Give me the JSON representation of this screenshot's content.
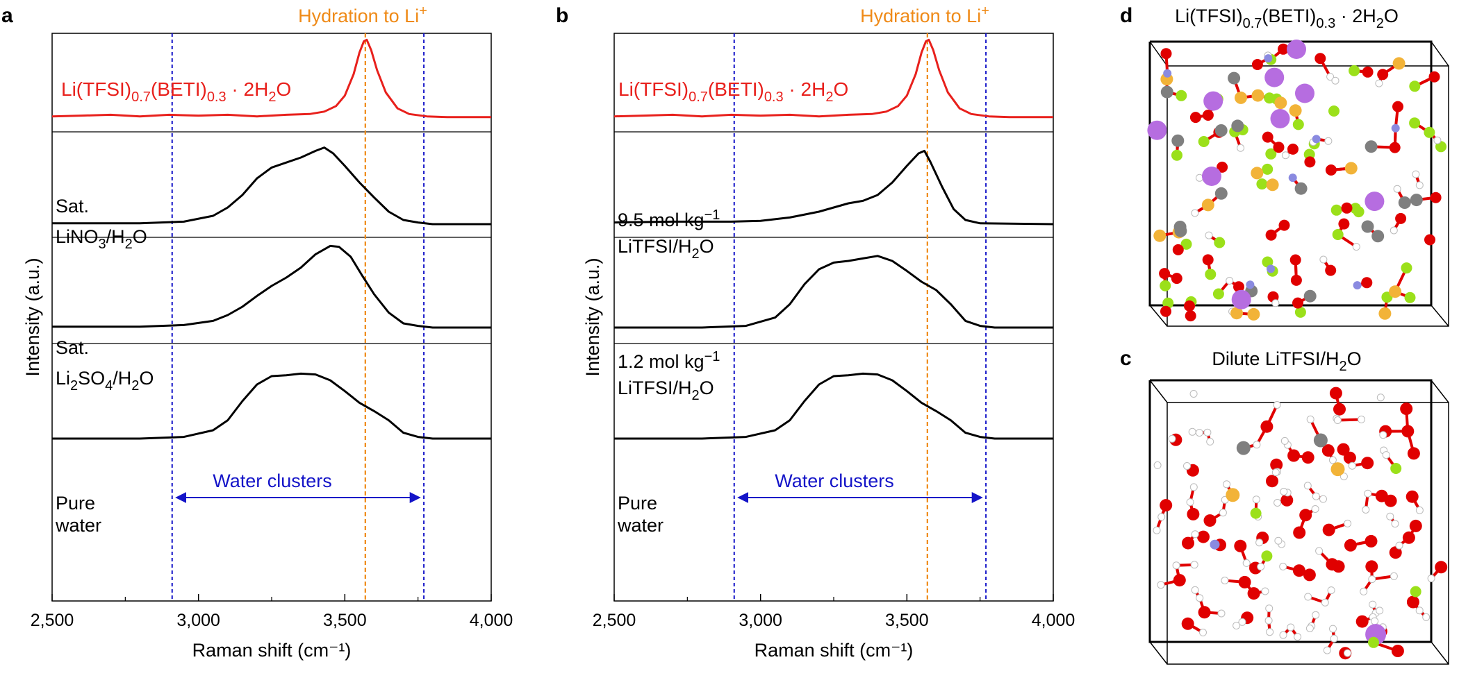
{
  "figure": {
    "panels": {
      "a": "a",
      "b": "b",
      "c": "c",
      "d": "d"
    },
    "annotation_hydration": "Hydration to Li",
    "annotation_hydration_sup": "+",
    "annotation_water": "Water clusters",
    "salt_label": {
      "p1": "Li(TFSI)",
      "s1": "0.7",
      "p2": "(BETI)",
      "s2": "0.3",
      "p3": " · 2H",
      "s3": "2",
      "p4": "O"
    },
    "panel_a_labels": {
      "lino3_l1": "Sat.",
      "lino3_l2a": "LiNO",
      "lino3_l2s": "3",
      "lino3_l2b": "/H",
      "lino3_l2s2": "2",
      "lino3_l2c": "O",
      "li2so4_l1": "Sat.",
      "li2so4_l2a": "Li",
      "li2so4_l2s": "2",
      "li2so4_l2b": "SO",
      "li2so4_l2s2": "4",
      "li2so4_l2c": "/H",
      "li2so4_l2s3": "2",
      "li2so4_l2d": "O",
      "water_l1": "Pure",
      "water_l2": "water"
    },
    "panel_b_labels": {
      "c95_l1a": "9.5 mol kg",
      "c95_sup": "−1",
      "c95_l2a": "LiTFSI/H",
      "c95_l2s": "2",
      "c95_l2b": "O",
      "c12_l1a": "1.2 mol kg",
      "c12_sup": "−1",
      "c12_l2a": "LiTFSI/H",
      "c12_l2s": "2",
      "c12_l2b": "O",
      "water_l1": "Pure",
      "water_l2": "water"
    },
    "panel_c_title_a": "Dilute LiTFSI/H",
    "panel_c_title_s": "2",
    "panel_c_title_b": "O",
    "colors": {
      "salt_trace": "#e8201c",
      "other_traces": "#000000",
      "hydration_line": "#ef8a17",
      "water_cluster_lines": "#1414c8",
      "atom_O": "#e00000",
      "atom_H": "#ffffff",
      "atom_F": "#9be01a",
      "atom_S": "#f2b338",
      "atom_C": "#7f7f7f",
      "atom_N": "#8a8ae0",
      "atom_Li": "#b66de0"
    }
  },
  "chart_data": [
    {
      "panel": "a",
      "type": "line",
      "xlabel": "Raman shift (cm⁻¹)",
      "ylabel": "Intensity (a.u.)",
      "xlim": [
        2500,
        4000
      ],
      "xticks": [
        "2,500",
        "3,000",
        "3,500",
        "4,000"
      ],
      "xtick_values": [
        2500,
        3000,
        3500,
        4000
      ],
      "hydration_x": 3570,
      "water_cluster_range": [
        2910,
        3770
      ],
      "series": [
        {
          "name": "Li(TFSI)0.7(BETI)0.3 · 2H2O",
          "color": "#e8201c",
          "x": [
            2500,
            2600,
            2700,
            2800,
            2900,
            3000,
            3100,
            3200,
            3300,
            3380,
            3430,
            3470,
            3500,
            3530,
            3550,
            3565,
            3575,
            3590,
            3610,
            3640,
            3680,
            3720,
            3780,
            3850,
            4000
          ],
          "y": [
            0.02,
            0.03,
            0.04,
            0.02,
            0.04,
            0.03,
            0.04,
            0.02,
            0.04,
            0.05,
            0.08,
            0.15,
            0.28,
            0.55,
            0.82,
            0.96,
            0.98,
            0.85,
            0.6,
            0.32,
            0.12,
            0.05,
            0.02,
            0.01,
            0.01
          ]
        },
        {
          "name": "Sat. LiNO3/H2O",
          "color": "#000000",
          "x": [
            2500,
            2800,
            2950,
            3050,
            3100,
            3150,
            3200,
            3250,
            3300,
            3350,
            3400,
            3430,
            3460,
            3500,
            3550,
            3600,
            3650,
            3700,
            3750,
            3800,
            4000
          ],
          "y": [
            0.01,
            0.01,
            0.03,
            0.1,
            0.2,
            0.35,
            0.55,
            0.68,
            0.74,
            0.8,
            0.88,
            0.92,
            0.85,
            0.7,
            0.5,
            0.32,
            0.15,
            0.05,
            0.02,
            0.0,
            0.0
          ]
        },
        {
          "name": "Sat. Li2SO4/H2O",
          "color": "#000000",
          "x": [
            2500,
            2800,
            2950,
            3050,
            3100,
            3150,
            3200,
            3250,
            3300,
            3350,
            3400,
            3450,
            3480,
            3520,
            3560,
            3600,
            3650,
            3700,
            3750,
            3800,
            4000
          ],
          "y": [
            0.01,
            0.01,
            0.03,
            0.08,
            0.15,
            0.25,
            0.38,
            0.5,
            0.6,
            0.72,
            0.88,
            0.98,
            0.97,
            0.85,
            0.62,
            0.4,
            0.18,
            0.05,
            0.02,
            0.0,
            0.0
          ]
        },
        {
          "name": "Pure water",
          "color": "#000000",
          "x": [
            2500,
            2800,
            2950,
            3050,
            3100,
            3150,
            3200,
            3250,
            3300,
            3350,
            3400,
            3450,
            3500,
            3550,
            3600,
            3650,
            3700,
            3750,
            3800,
            4000
          ],
          "y": [
            0.0,
            0.0,
            0.02,
            0.1,
            0.22,
            0.45,
            0.65,
            0.75,
            0.76,
            0.78,
            0.77,
            0.7,
            0.57,
            0.43,
            0.33,
            0.22,
            0.07,
            0.02,
            0.0,
            0.0
          ]
        }
      ]
    },
    {
      "panel": "b",
      "type": "line",
      "xlabel": "Raman shift (cm⁻¹)",
      "ylabel": "Intensity (a.u.)",
      "xlim": [
        2500,
        4000
      ],
      "xticks": [
        "2,500",
        "3,000",
        "3,500",
        "4,000"
      ],
      "xtick_values": [
        2500,
        3000,
        3500,
        4000
      ],
      "hydration_x": 3570,
      "water_cluster_range": [
        2910,
        3770
      ],
      "series": [
        {
          "name": "Li(TFSI)0.7(BETI)0.3 · 2H2O",
          "color": "#e8201c",
          "x": [
            2500,
            2600,
            2700,
            2800,
            2900,
            3000,
            3100,
            3200,
            3300,
            3380,
            3430,
            3470,
            3500,
            3530,
            3550,
            3565,
            3575,
            3590,
            3610,
            3640,
            3680,
            3720,
            3780,
            3850,
            4000
          ],
          "y": [
            0.02,
            0.03,
            0.04,
            0.02,
            0.04,
            0.03,
            0.04,
            0.02,
            0.04,
            0.05,
            0.08,
            0.15,
            0.28,
            0.55,
            0.82,
            0.96,
            0.98,
            0.85,
            0.6,
            0.32,
            0.12,
            0.05,
            0.02,
            0.01,
            0.01
          ]
        },
        {
          "name": "9.5 mol kg−1 LiTFSI/H2O",
          "color": "#000000",
          "x": [
            2500,
            2700,
            2900,
            3000,
            3100,
            3200,
            3250,
            3300,
            3350,
            3400,
            3450,
            3500,
            3540,
            3560,
            3580,
            3620,
            3660,
            3700,
            3750,
            4000
          ],
          "y": [
            0.02,
            0.03,
            0.03,
            0.04,
            0.08,
            0.15,
            0.2,
            0.25,
            0.28,
            0.35,
            0.5,
            0.7,
            0.85,
            0.88,
            0.75,
            0.45,
            0.18,
            0.05,
            0.01,
            0.0
          ]
        },
        {
          "name": "1.2 mol kg−1 LiTFSI/H2O",
          "color": "#000000",
          "x": [
            2500,
            2800,
            2950,
            3050,
            3100,
            3150,
            3200,
            3250,
            3300,
            3350,
            3400,
            3450,
            3500,
            3550,
            3600,
            3650,
            3700,
            3750,
            3800,
            4000
          ],
          "y": [
            0.0,
            0.0,
            0.02,
            0.12,
            0.28,
            0.52,
            0.7,
            0.78,
            0.8,
            0.83,
            0.86,
            0.8,
            0.68,
            0.55,
            0.45,
            0.28,
            0.08,
            0.02,
            0.0,
            0.0
          ]
        },
        {
          "name": "Pure water",
          "color": "#000000",
          "x": [
            2500,
            2800,
            2950,
            3050,
            3100,
            3150,
            3200,
            3250,
            3300,
            3350,
            3400,
            3450,
            3500,
            3550,
            3600,
            3650,
            3700,
            3750,
            3800,
            4000
          ],
          "y": [
            0.0,
            0.0,
            0.02,
            0.1,
            0.22,
            0.45,
            0.65,
            0.75,
            0.76,
            0.78,
            0.77,
            0.7,
            0.57,
            0.43,
            0.33,
            0.22,
            0.07,
            0.02,
            0.0,
            0.0
          ]
        }
      ]
    }
  ]
}
